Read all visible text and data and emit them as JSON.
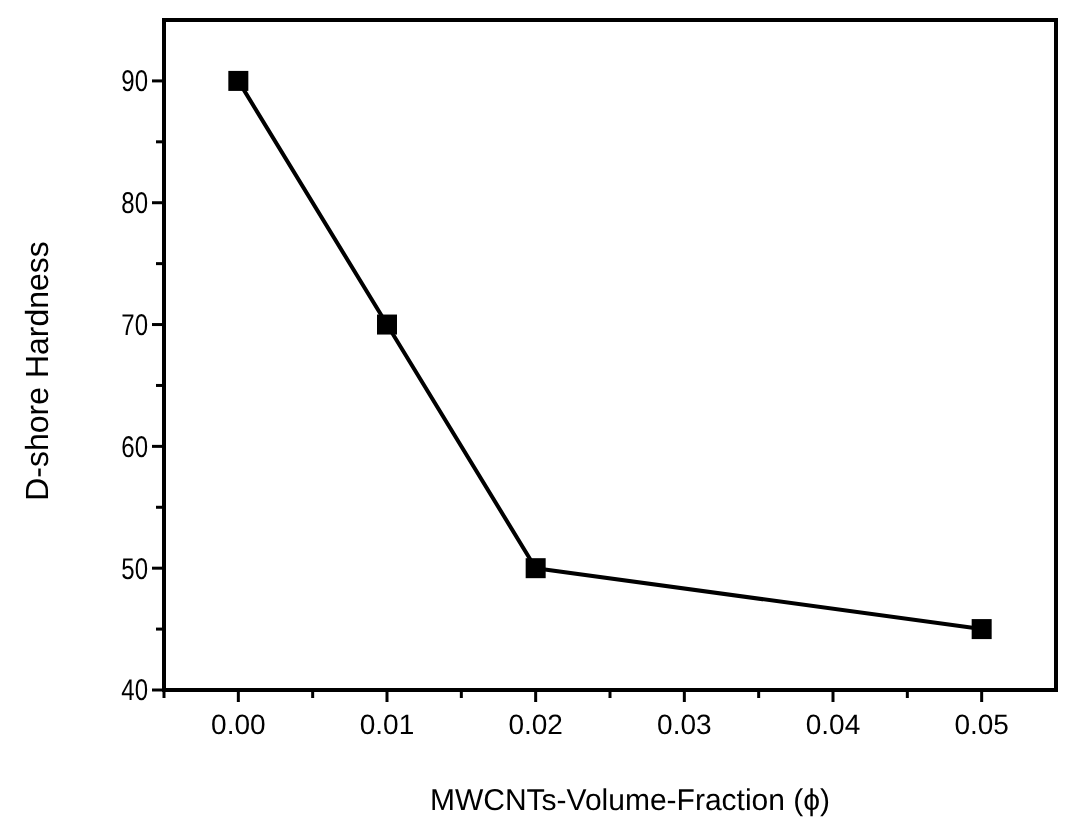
{
  "chart_data": {
    "type": "line",
    "xlabel": "MWCNTs-Volume-Fraction (ϕ)",
    "ylabel": "D-shore Hardness",
    "x": [
      0,
      0.01,
      0.02,
      0.05
    ],
    "series": [
      {
        "color": "#000000",
        "values": [
          90,
          70,
          50,
          45
        ]
      }
    ],
    "xlim": [
      -0.005,
      0.055
    ],
    "xticks": [
      {
        "value": -0.005,
        "label": null
      },
      {
        "value": 0,
        "label": "0.00"
      },
      {
        "value": 0.005,
        "label": null
      },
      {
        "value": 0.01,
        "label": "0.01"
      },
      {
        "value": 0.015,
        "label": null
      },
      {
        "value": 0.02,
        "label": "0.02"
      },
      {
        "value": 0.025,
        "label": null
      },
      {
        "value": 0.03,
        "label": "0.03"
      },
      {
        "value": 0.035,
        "label": null
      },
      {
        "value": 0.04,
        "label": "0.04"
      },
      {
        "value": 0.045,
        "label": null
      },
      {
        "value": 0.05,
        "label": "0.05"
      }
    ],
    "ylim": [
      40,
      95
    ],
    "yticks": [
      40,
      {
        "value": 45,
        "label": null
      },
      50,
      {
        "value": 55,
        "label": null
      },
      60,
      {
        "value": 65,
        "label": null
      },
      70,
      {
        "value": 75,
        "label": null
      },
      80,
      {
        "value": 85,
        "label": null
      },
      90
    ],
    "marker": "square",
    "line_style": "solid",
    "grid": false
  }
}
